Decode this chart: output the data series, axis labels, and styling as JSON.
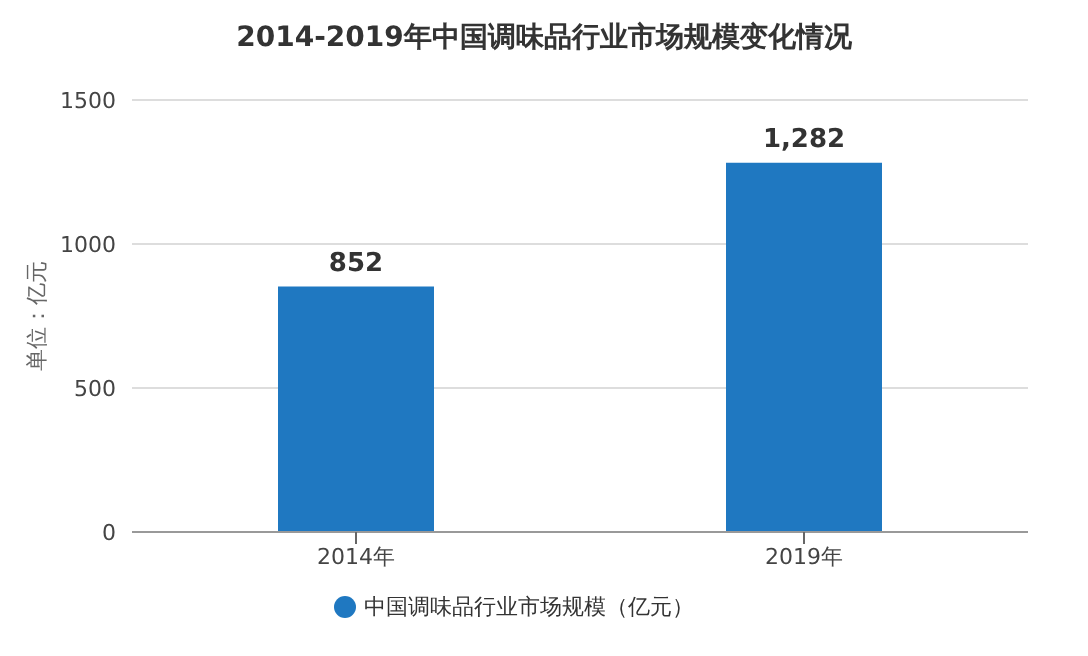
{
  "chart_data": {
    "type": "bar",
    "title": "2014-2019年中国调味品行业市场规模变化情况",
    "ylabel": "单位：亿元",
    "categories": [
      "2014年",
      "2019年"
    ],
    "series": [
      {
        "name": "中国调味品行业市场规模（亿元）",
        "color": "#1f78c1",
        "values": [
          852,
          1282
        ],
        "value_labels": [
          "852",
          "1,282"
        ]
      }
    ],
    "ylim": [
      0,
      1500
    ],
    "yticks": [
      0,
      500,
      1000,
      1500
    ],
    "grid": "y",
    "legend": "bottom"
  }
}
